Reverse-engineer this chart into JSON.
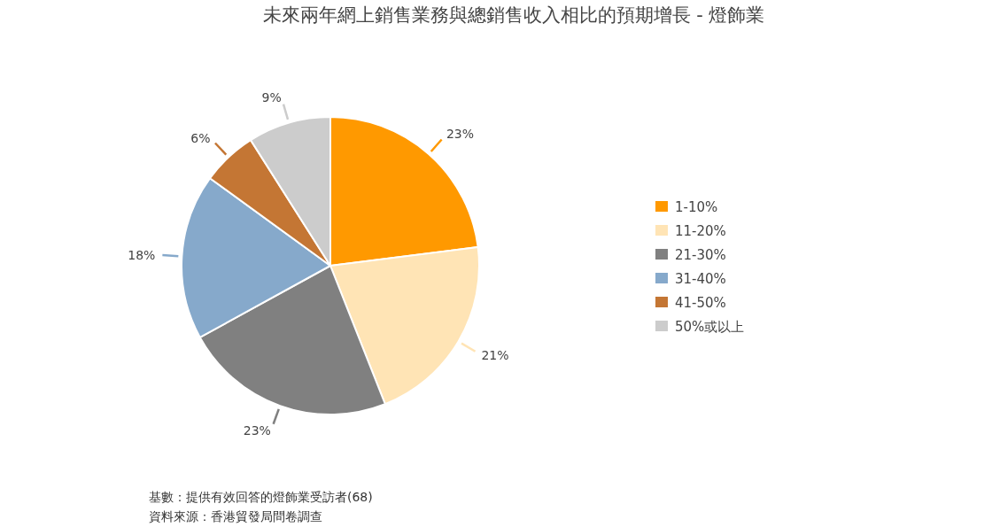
{
  "chart_data": {
    "type": "pie",
    "title": "未來兩年網上銷售業務與總銷售收入相比的預期增長 - 燈飾業",
    "categories": [
      "1-10%",
      "11-20%",
      "21-30%",
      "31-40%",
      "41-50%",
      "50%或以上"
    ],
    "values": [
      23,
      21,
      23,
      18,
      6,
      9
    ],
    "colors": [
      "#ff9900",
      "#ffe4b5",
      "#808080",
      "#86a9cb",
      "#c47634",
      "#cccccc"
    ],
    "value_labels": [
      "23%",
      "21%",
      "23%",
      "18%",
      "6%",
      "9%"
    ],
    "legend": "right",
    "annotations": [
      "基數：提供有效回答的燈飾業受訪者(68)",
      "資料來源：香港貿發局問卷調查"
    ]
  }
}
